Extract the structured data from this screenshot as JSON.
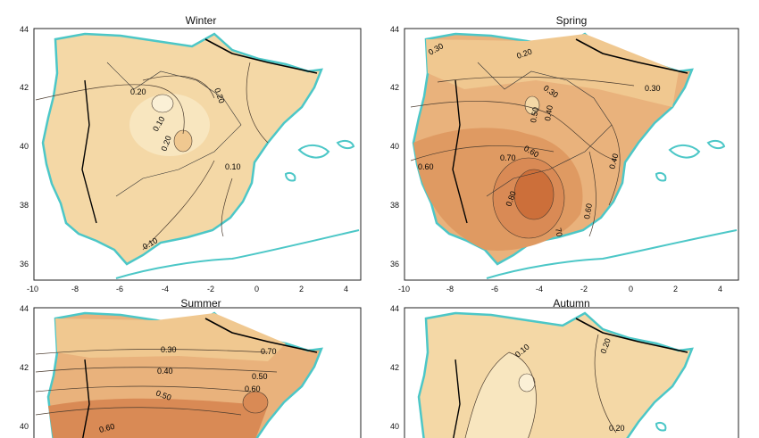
{
  "panels": [
    {
      "title": "Winter",
      "y_ticks": [
        "44",
        "42",
        "40",
        "38",
        "36"
      ],
      "x_ticks": [
        "-10",
        "-8",
        "-6",
        "-4",
        "-2",
        "0",
        "2",
        "4"
      ],
      "contour_labels": [
        "0.20",
        "0.10",
        "0.20",
        "0.20",
        "0.10",
        "0.10"
      ]
    },
    {
      "title": "Spring",
      "y_ticks": [
        "44",
        "42",
        "40",
        "38",
        "36"
      ],
      "x_ticks": [
        "-10",
        "-8",
        "-6",
        "-4",
        "-2",
        "0",
        "2",
        "4"
      ],
      "contour_labels": [
        "0.30",
        "0.20",
        "0.30",
        "0.30",
        "0.50",
        "0.40",
        "0.60",
        "0.60",
        "0.70",
        "0.80",
        "0.40",
        "0.60",
        "70"
      ]
    },
    {
      "title": "Summer",
      "y_ticks": [
        "44",
        "42",
        "40"
      ],
      "contour_labels": [
        "0.30",
        "0.40",
        "0.50",
        "0.60",
        "0.70",
        "0.50",
        "0.60"
      ]
    },
    {
      "title": "Autumn",
      "y_ticks": [
        "44",
        "42",
        "40"
      ],
      "contour_labels": [
        "0.10",
        "0.20",
        "0.20"
      ]
    }
  ],
  "colors": {
    "land_light": "#f4d8a6",
    "land_lighter": "#f8e6bf",
    "land_medium": "#e9b27c",
    "land_dark": "#d98a55",
    "land_darker": "#cc6f3a",
    "coast": "#4cc7c7",
    "contour": "#4a3b2e",
    "border": "#000000"
  }
}
